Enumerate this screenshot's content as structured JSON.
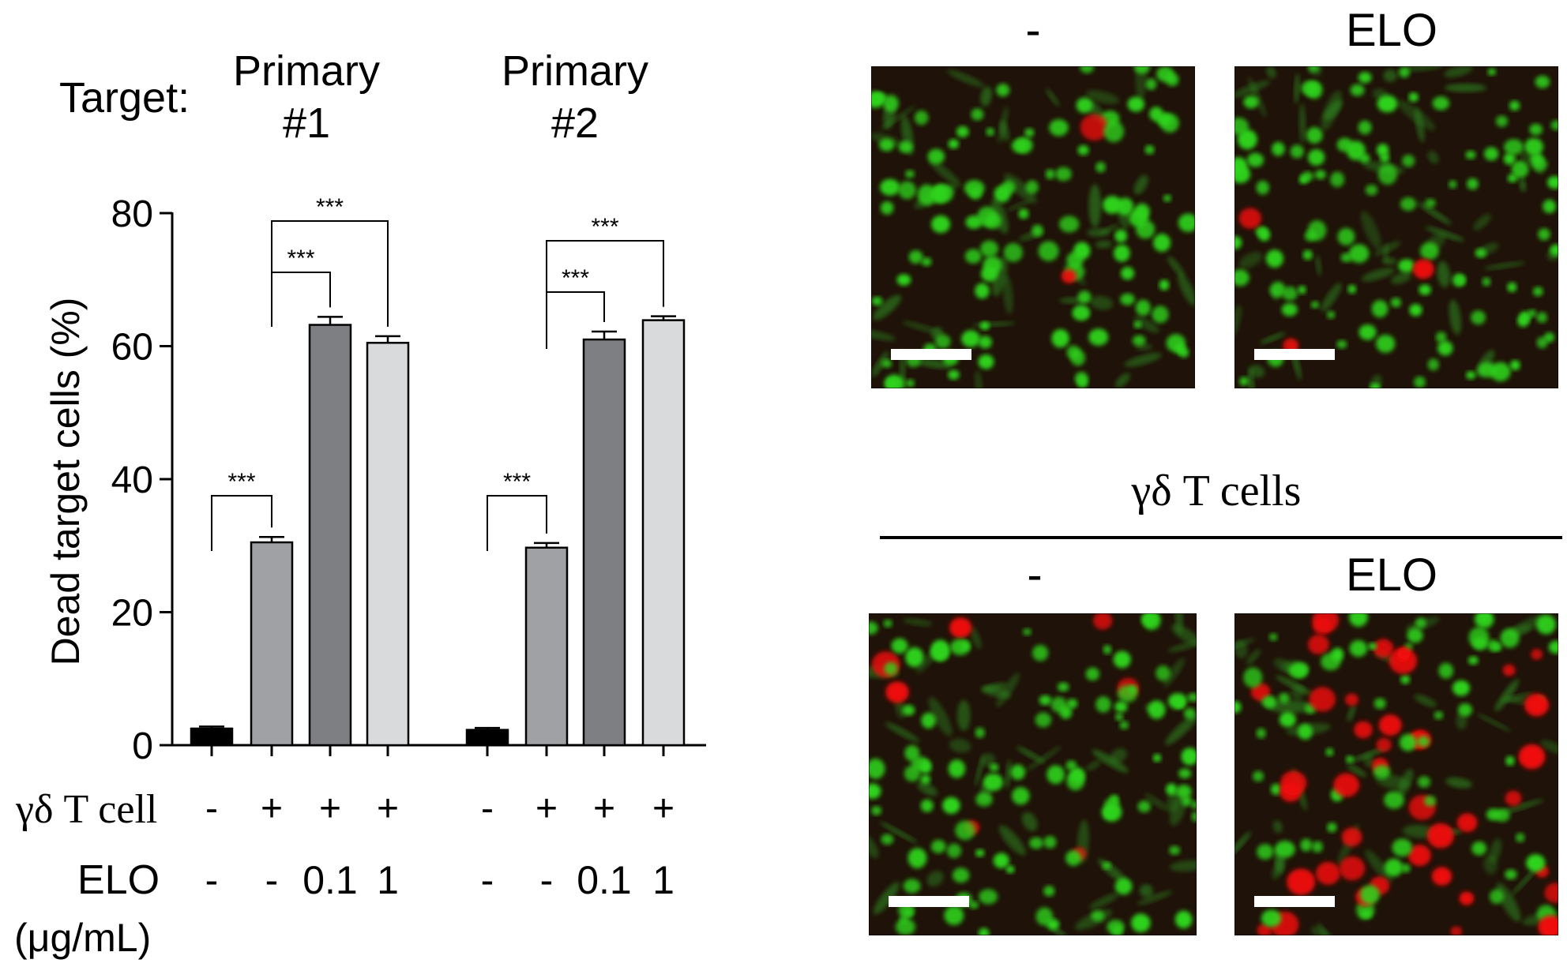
{
  "chart_data": {
    "type": "bar",
    "header_label": "Target:",
    "groups": [
      {
        "name": "Primary #1",
        "name_lines": [
          "Primary",
          "#1"
        ],
        "bars": [
          {
            "gd": "-",
            "elo": "-",
            "value": 2.5,
            "error": 0.3,
            "color": "#000000"
          },
          {
            "gd": "+",
            "elo": "-",
            "value": 30.5,
            "error": 0.8,
            "color": "#A0A1A5"
          },
          {
            "gd": "+",
            "elo": "0.1",
            "value": 63.2,
            "error": 1.2,
            "color": "#7E7F82"
          },
          {
            "gd": "+",
            "elo": "1",
            "value": 60.5,
            "error": 1.0,
            "color": "#D9DADC"
          }
        ],
        "significance": [
          {
            "from": 0,
            "to": 1,
            "label": "***"
          },
          {
            "from": 1,
            "to": 2,
            "label": "***"
          },
          {
            "from": 1,
            "to": 3,
            "label": "***"
          }
        ]
      },
      {
        "name": "Primary #2",
        "name_lines": [
          "Primary",
          "#2"
        ],
        "bars": [
          {
            "gd": "-",
            "elo": "-",
            "value": 2.3,
            "error": 0.3,
            "color": "#000000"
          },
          {
            "gd": "+",
            "elo": "-",
            "value": 29.7,
            "error": 0.7,
            "color": "#A0A1A5"
          },
          {
            "gd": "+",
            "elo": "0.1",
            "value": 61.0,
            "error": 1.2,
            "color": "#7E7F82"
          },
          {
            "gd": "+",
            "elo": "1",
            "value": 63.9,
            "error": 0.6,
            "color": "#D9DADC"
          }
        ],
        "significance": [
          {
            "from": 0,
            "to": 1,
            "label": "***"
          },
          {
            "from": 1,
            "to": 2,
            "label": "***"
          },
          {
            "from": 1,
            "to": 3,
            "label": "***"
          }
        ]
      }
    ],
    "ylabel": "Dead target cells (%)",
    "ylim": [
      0,
      80
    ],
    "yticks": [
      0,
      20,
      40,
      60,
      80
    ],
    "row_labels": {
      "gd": "γδ T cell",
      "elo": "ELO",
      "elo_unit": "(μg/mL)"
    }
  },
  "micrographs": {
    "top_labels": [
      "-",
      "ELO"
    ],
    "bottom_labels": [
      "-",
      "ELO"
    ],
    "group_label": "γδ T cells",
    "colors": {
      "background": "#1f1208",
      "live": "#2fd41e",
      "dead": "#f01010"
    },
    "panels": [
      {
        "name": "control-no-tcells",
        "red_fraction": 0.02
      },
      {
        "name": "elo-no-tcells",
        "red_fraction": 0.02
      },
      {
        "name": "control-with-tcells",
        "red_fraction": 0.08
      },
      {
        "name": "elo-with-tcells",
        "red_fraction": 0.38
      }
    ]
  }
}
